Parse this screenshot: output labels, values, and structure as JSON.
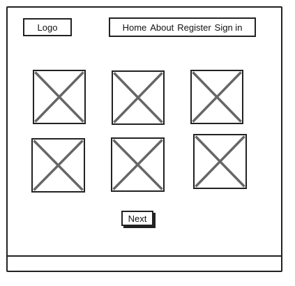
{
  "header": {
    "logo_label": "Logo",
    "nav": [
      {
        "label": "Home"
      },
      {
        "label": "About"
      },
      {
        "label": "Register"
      },
      {
        "label": "Sign in"
      }
    ]
  },
  "gallery": {
    "image_count": 6,
    "icon": "image-placeholder-icon"
  },
  "pagination": {
    "next_label": "Next"
  },
  "colors": {
    "stroke": "#222222",
    "placeholder_cross": "#666666",
    "background": "#ffffff"
  }
}
